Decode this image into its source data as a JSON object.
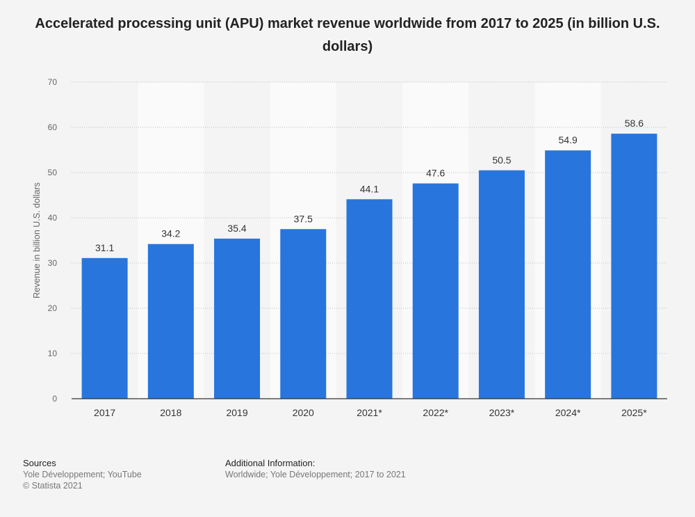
{
  "chart_data": {
    "type": "bar",
    "title": "Accelerated processing unit (APU) market revenue worldwide from 2017 to 2025 (in billion U.S. dollars)",
    "ylabel": "Revenue in billion U.S. dollars",
    "xlabel": "",
    "categories": [
      "2017",
      "2018",
      "2019",
      "2020",
      "2021*",
      "2022*",
      "2023*",
      "2024*",
      "2025*"
    ],
    "values": [
      31.1,
      34.2,
      35.4,
      37.5,
      44.1,
      47.6,
      50.5,
      54.9,
      58.6
    ],
    "value_labels": [
      "31.1",
      "34.2",
      "35.4",
      "37.5",
      "44.1",
      "47.6",
      "50.5",
      "54.9",
      "58.6"
    ],
    "ylim": [
      0,
      70
    ],
    "yticks": [
      "0",
      "10",
      "20",
      "30",
      "40",
      "50",
      "60",
      "70"
    ],
    "ytick_values": [
      0,
      10,
      20,
      30,
      40,
      50,
      60,
      70
    ],
    "grid": true,
    "bar_color": "#2876dd"
  },
  "footer": {
    "sources_heading": "Sources",
    "sources_line1": "Yole Développement; YouTube",
    "sources_line2": "© Statista 2021",
    "additional_heading": "Additional Information:",
    "additional_line1": "Worldwide; Yole Développement; 2017 to 2021"
  }
}
